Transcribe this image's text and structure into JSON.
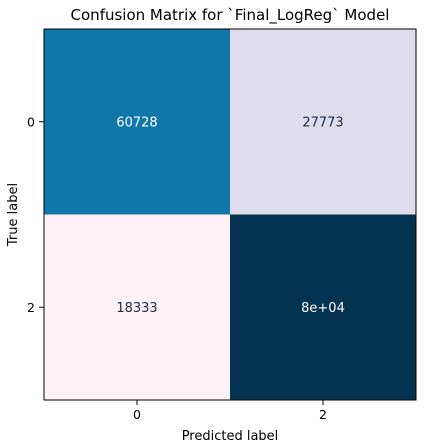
{
  "chart_data": {
    "type": "heatmap",
    "title": "Confusion Matrix for `Final_LogReg` Model",
    "xlabel": "Predicted label",
    "ylabel": "True label",
    "x_tick_labels": [
      "0",
      "2"
    ],
    "y_tick_labels": [
      "0",
      "2"
    ],
    "cells": [
      {
        "row": 0,
        "col": 0,
        "label": "60728",
        "value": 60728,
        "fill": "#0f77a9",
        "text_color": "#ffffff"
      },
      {
        "row": 0,
        "col": 1,
        "label": "27773",
        "value": 27773,
        "fill": "#dfdcec",
        "text_color": "#1b2a4a"
      },
      {
        "row": 1,
        "col": 0,
        "label": "18333",
        "value": 18333,
        "fill": "#fef2f7",
        "text_color": "#1b2a4a"
      },
      {
        "row": 1,
        "col": 1,
        "label": "8e+04",
        "value": 80000,
        "fill": "#033350",
        "text_color": "#ffffff"
      }
    ],
    "colormap": "PuBu",
    "grid": false,
    "legend": "none"
  }
}
